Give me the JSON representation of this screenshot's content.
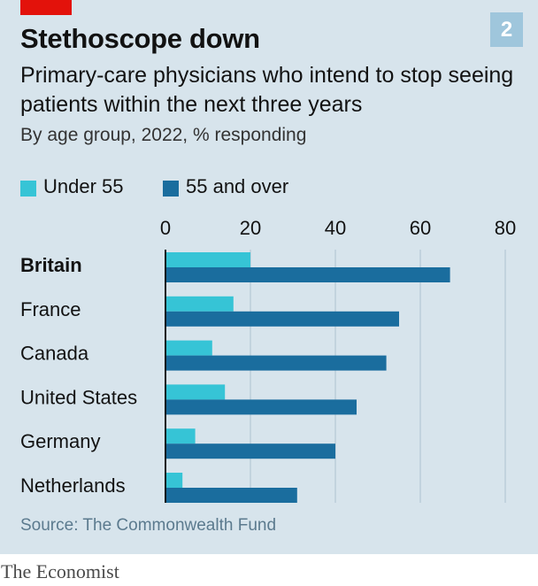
{
  "badge": "2",
  "title": "Stethoscope down",
  "subtitle": "Primary-care physicians who intend to stop seeing patients within the next three years",
  "note": "By age group, 2022, % responding",
  "source": "Source: The Commonwealth Fund",
  "brand": "The Economist",
  "colors": {
    "background": "#d7e4ec",
    "under55": "#36c4d6",
    "over55": "#1a6d9e",
    "red_tag": "#e3120b"
  },
  "chart_data": {
    "type": "bar",
    "orientation": "horizontal",
    "categories": [
      "Britain",
      "France",
      "Canada",
      "United States",
      "Germany",
      "Netherlands"
    ],
    "highlight_category": "Britain",
    "series": [
      {
        "name": "Under 55",
        "values": [
          20,
          16,
          11,
          14,
          7,
          4
        ]
      },
      {
        "name": "55 and over",
        "values": [
          67,
          55,
          52,
          45,
          40,
          31
        ]
      }
    ],
    "xlim": [
      0,
      80
    ],
    "xticks": [
      0,
      20,
      40,
      60,
      80
    ],
    "grid": true,
    "legend": "top-left"
  }
}
